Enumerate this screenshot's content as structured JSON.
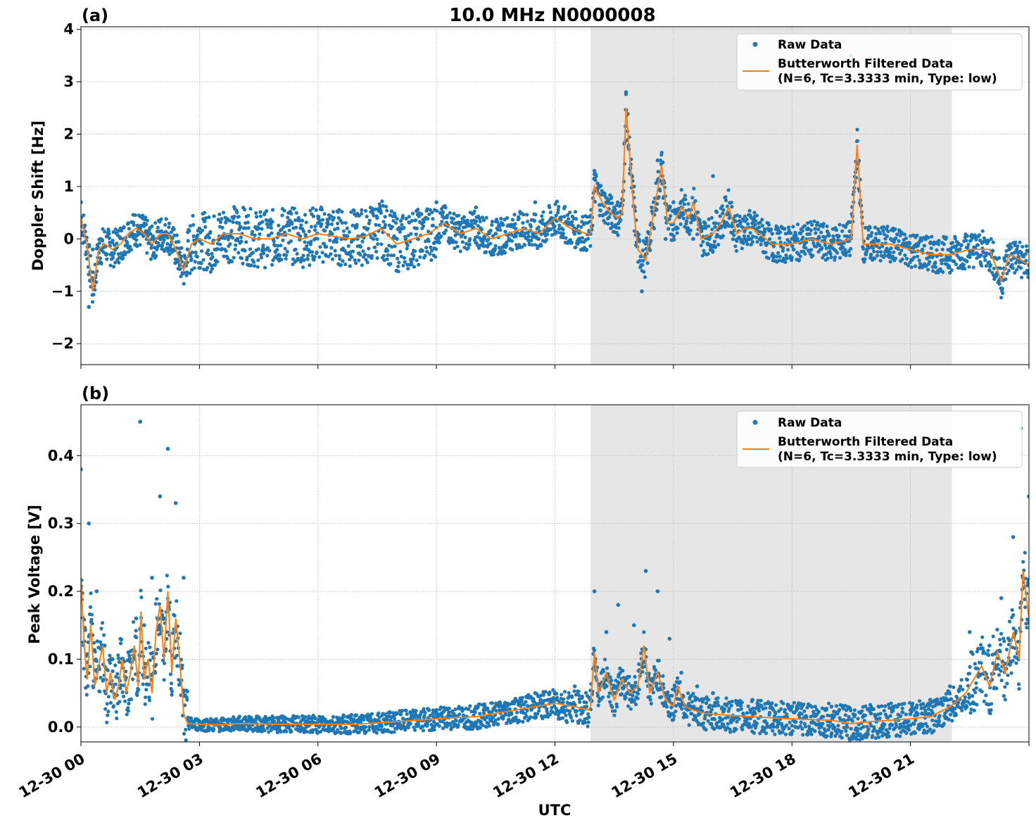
{
  "figure": {
    "title": "10.0 MHz N0000008",
    "xlabel": "UTC",
    "x_ticks": [
      "12-30 00",
      "12-30 03",
      "12-30 06",
      "12-30 09",
      "12-30 12",
      "12-30 15",
      "12-30 18",
      "12-30 21"
    ],
    "legend": {
      "raw": "Raw Data",
      "filtered_line1": "Butterworth Filtered Data",
      "filtered_line2": "(N=6, Tc=3.3333 min, Type: low)"
    },
    "colors": {
      "raw": "#1f77b4",
      "filtered": "#ff7f0e",
      "shade": "#e6e6e6",
      "grid": "#b0b0b0"
    }
  },
  "chart_data": [
    {
      "type": "scatter",
      "panel": "(a)",
      "title": "10.0 MHz N0000008",
      "xlabel": "",
      "ylabel": "Doppler Shift [Hz]",
      "x_unit": "hours UTC since 12-30 00",
      "xlim": [
        0,
        24
      ],
      "ylim": [
        -2.4,
        4.05
      ],
      "y_ticks": [
        -2,
        -1,
        0,
        1,
        2,
        3,
        4
      ],
      "y_tick_labels": [
        "−2",
        "−1",
        "0",
        "1",
        "2",
        "3",
        "4"
      ],
      "grid": true,
      "legend_position": "top-right",
      "shaded_interval": [
        12.9,
        22.05
      ],
      "series": [
        {
          "name": "Raw Data",
          "kind": "points",
          "x": [
            0,
            0.2,
            0.3,
            0.5,
            0.8,
            1.0,
            1.2,
            1.5,
            1.8,
            2.2,
            2.5,
            2.7,
            3.0,
            3.5,
            4,
            4.5,
            5,
            5.5,
            6,
            6.5,
            7,
            7.5,
            8,
            8.5,
            9,
            9.5,
            10,
            10.5,
            11,
            11.5,
            12,
            12.5,
            12.9,
            13.0,
            13.3,
            13.5,
            13.8,
            14.0,
            14.2,
            14.4,
            14.6,
            14.8,
            15.0,
            15.2,
            15.5,
            15.8,
            16.0,
            16.3,
            16.5,
            16.8,
            17.0,
            17.5,
            18,
            18.5,
            19,
            19.5,
            20,
            20.5,
            21,
            21.5,
            22,
            22.5,
            23,
            23.5,
            24
          ],
          "y": [
            0.7,
            -1.3,
            -0.2,
            0.0,
            -0.3,
            0.2,
            0.3,
            0.2,
            0.0,
            0.1,
            -0.5,
            -0.2,
            0.2,
            0.0,
            0.3,
            0.2,
            0.1,
            0.1,
            0.3,
            0.2,
            0.0,
            0.4,
            0.0,
            0.2,
            0.7,
            0.3,
            0.6,
            0.1,
            0.2,
            0.7,
            0.1,
            0.2,
            0.1,
            1.3,
            0.7,
            0.6,
            2.8,
            1.0,
            -1.0,
            0.1,
            1.5,
            0.0,
            0.7,
            0.6,
            0.0,
            0.3,
            1.2,
            0.3,
            0.3,
            0.0,
            0.3,
            0.1,
            0.0,
            0.0,
            -0.1,
            3.5,
            -0.3,
            0.0,
            -0.2,
            -0.3,
            -0.4,
            -0.3,
            -0.6,
            -0.2,
            -0.5
          ]
        },
        {
          "name": "Butterworth Filtered Data (N=6, Tc=3.3333 min, Type: low)",
          "kind": "line",
          "x": [
            0,
            0.15,
            0.3,
            0.45,
            0.6,
            0.8,
            1.0,
            1.2,
            1.4,
            1.6,
            1.8,
            2.0,
            2.2,
            2.4,
            2.6,
            2.8,
            3.0,
            3.3,
            3.6,
            4.0,
            4.4,
            4.8,
            5.2,
            5.6,
            6.0,
            6.4,
            6.8,
            7.2,
            7.6,
            8.0,
            8.4,
            8.8,
            9.2,
            9.6,
            10.0,
            10.4,
            10.8,
            11.2,
            11.6,
            12.0,
            12.4,
            12.8,
            12.9,
            13.0,
            13.2,
            13.4,
            13.6,
            13.7,
            13.8,
            14.0,
            14.1,
            14.3,
            14.5,
            14.7,
            14.85,
            15.0,
            15.2,
            15.4,
            15.5,
            15.7,
            16.0,
            16.2,
            16.4,
            16.6,
            16.8,
            17.0,
            17.5,
            18.0,
            18.5,
            19.0,
            19.5,
            19.65,
            19.8,
            20.0,
            20.5,
            21.0,
            21.5,
            22.0,
            22.5,
            23.0,
            23.3,
            23.5,
            23.8,
            24.0
          ],
          "y": [
            0.4,
            -0.1,
            -1.0,
            -0.2,
            -0.1,
            -0.2,
            -0.1,
            0.1,
            0.2,
            0.1,
            -0.1,
            0.1,
            0.1,
            -0.2,
            -0.6,
            -0.1,
            0.0,
            -0.1,
            0.1,
            0.1,
            0.0,
            0.0,
            0.1,
            0.0,
            0.1,
            0.05,
            0.0,
            0.05,
            0.2,
            -0.1,
            0.0,
            0.1,
            0.3,
            0.1,
            0.2,
            0.0,
            0.1,
            0.2,
            0.1,
            0.4,
            0.2,
            0.1,
            0.1,
            1.0,
            0.7,
            0.5,
            0.4,
            0.5,
            2.5,
            0.5,
            -0.2,
            -0.4,
            0.5,
            1.4,
            0.3,
            0.3,
            0.6,
            0.4,
            0.7,
            0.0,
            0.1,
            0.3,
            0.6,
            0.1,
            0.2,
            0.2,
            -0.1,
            -0.1,
            0.0,
            -0.1,
            0.0,
            1.8,
            -0.1,
            -0.1,
            -0.1,
            -0.2,
            -0.3,
            -0.3,
            -0.2,
            -0.2,
            -0.8,
            -0.3,
            -0.4,
            -0.5
          ]
        }
      ]
    },
    {
      "type": "scatter",
      "panel": "(b)",
      "title": "",
      "xlabel": "UTC",
      "ylabel": "Peak Voltage [V]",
      "x_unit": "hours UTC since 12-30 00",
      "xlim": [
        0,
        24
      ],
      "ylim": [
        -0.022,
        0.475
      ],
      "y_ticks": [
        0.0,
        0.1,
        0.2,
        0.3,
        0.4
      ],
      "y_tick_labels": [
        "0.0",
        "0.1",
        "0.2",
        "0.3",
        "0.4"
      ],
      "grid": true,
      "legend_position": "top-right",
      "shaded_interval": [
        12.9,
        22.05
      ],
      "series": [
        {
          "name": "Raw Data",
          "kind": "points",
          "x": [
            0,
            0.2,
            0.4,
            0.6,
            0.8,
            1.0,
            1.2,
            1.4,
            1.5,
            1.6,
            1.8,
            2.0,
            2.2,
            2.4,
            2.6,
            2.7,
            3.0,
            4,
            5,
            6,
            7,
            8,
            9,
            10,
            11,
            11.5,
            12,
            12.5,
            12.9,
            13.0,
            13.3,
            13.6,
            14.0,
            14.3,
            14.6,
            14.9,
            15.2,
            15.6,
            16,
            17,
            18,
            19,
            20,
            21,
            21.5,
            22,
            22.5,
            23,
            23.3,
            23.6,
            23.8,
            24
          ],
          "y": [
            0.38,
            0.3,
            0.2,
            0.12,
            0.1,
            0.13,
            0.11,
            0.16,
            0.45,
            0.15,
            0.22,
            0.34,
            0.41,
            0.33,
            0.22,
            0.01,
            0.005,
            0.008,
            0.01,
            0.008,
            0.01,
            0.02,
            0.025,
            0.03,
            0.04,
            0.05,
            0.05,
            0.06,
            0.04,
            0.2,
            0.14,
            0.18,
            0.15,
            0.23,
            0.2,
            0.13,
            0.08,
            0.06,
            0.05,
            0.04,
            0.03,
            0.03,
            0.02,
            0.025,
            0.04,
            0.06,
            0.14,
            0.12,
            0.19,
            0.28,
            0.44,
            0.34
          ]
        },
        {
          "name": "Butterworth Filtered Data (N=6, Tc=3.3333 min, Type: low)",
          "kind": "line",
          "x": [
            0,
            0.08,
            0.16,
            0.25,
            0.35,
            0.45,
            0.55,
            0.65,
            0.75,
            0.85,
            0.95,
            1.05,
            1.15,
            1.25,
            1.35,
            1.45,
            1.52,
            1.6,
            1.7,
            1.8,
            1.9,
            2.0,
            2.1,
            2.2,
            2.3,
            2.4,
            2.5,
            2.6,
            2.7,
            3.0,
            3.5,
            4.0,
            5.0,
            6.0,
            7.0,
            7.5,
            8.0,
            8.5,
            9.0,
            9.5,
            10.0,
            10.5,
            11.0,
            11.5,
            12.0,
            12.5,
            12.85,
            12.9,
            13.0,
            13.1,
            13.3,
            13.5,
            13.7,
            13.9,
            14.1,
            14.25,
            14.4,
            14.6,
            14.8,
            15.0,
            15.1,
            15.3,
            15.5,
            15.8,
            16.2,
            17.0,
            18.0,
            19.0,
            19.5,
            20.0,
            20.5,
            21.0,
            21.5,
            22.0,
            22.2,
            22.4,
            22.6,
            22.8,
            23.0,
            23.2,
            23.4,
            23.6,
            23.75,
            23.85,
            24.0
          ],
          "y": [
            0.22,
            0.12,
            0.07,
            0.15,
            0.06,
            0.09,
            0.12,
            0.05,
            0.08,
            0.04,
            0.06,
            0.1,
            0.05,
            0.08,
            0.12,
            0.06,
            0.17,
            0.07,
            0.1,
            0.05,
            0.14,
            0.18,
            0.1,
            0.2,
            0.08,
            0.16,
            0.1,
            0.02,
            0.005,
            0.004,
            0.003,
            0.005,
            0.004,
            0.004,
            0.004,
            0.006,
            0.008,
            0.01,
            0.012,
            0.014,
            0.015,
            0.02,
            0.025,
            0.03,
            0.035,
            0.03,
            0.025,
            0.03,
            0.11,
            0.05,
            0.08,
            0.04,
            0.07,
            0.05,
            0.06,
            0.12,
            0.05,
            0.08,
            0.04,
            0.03,
            0.06,
            0.03,
            0.025,
            0.02,
            0.018,
            0.015,
            0.012,
            0.01,
            0.005,
            0.008,
            0.01,
            0.012,
            0.015,
            0.03,
            0.04,
            0.05,
            0.07,
            0.09,
            0.06,
            0.11,
            0.08,
            0.14,
            0.1,
            0.23,
            0.16
          ]
        }
      ]
    }
  ]
}
